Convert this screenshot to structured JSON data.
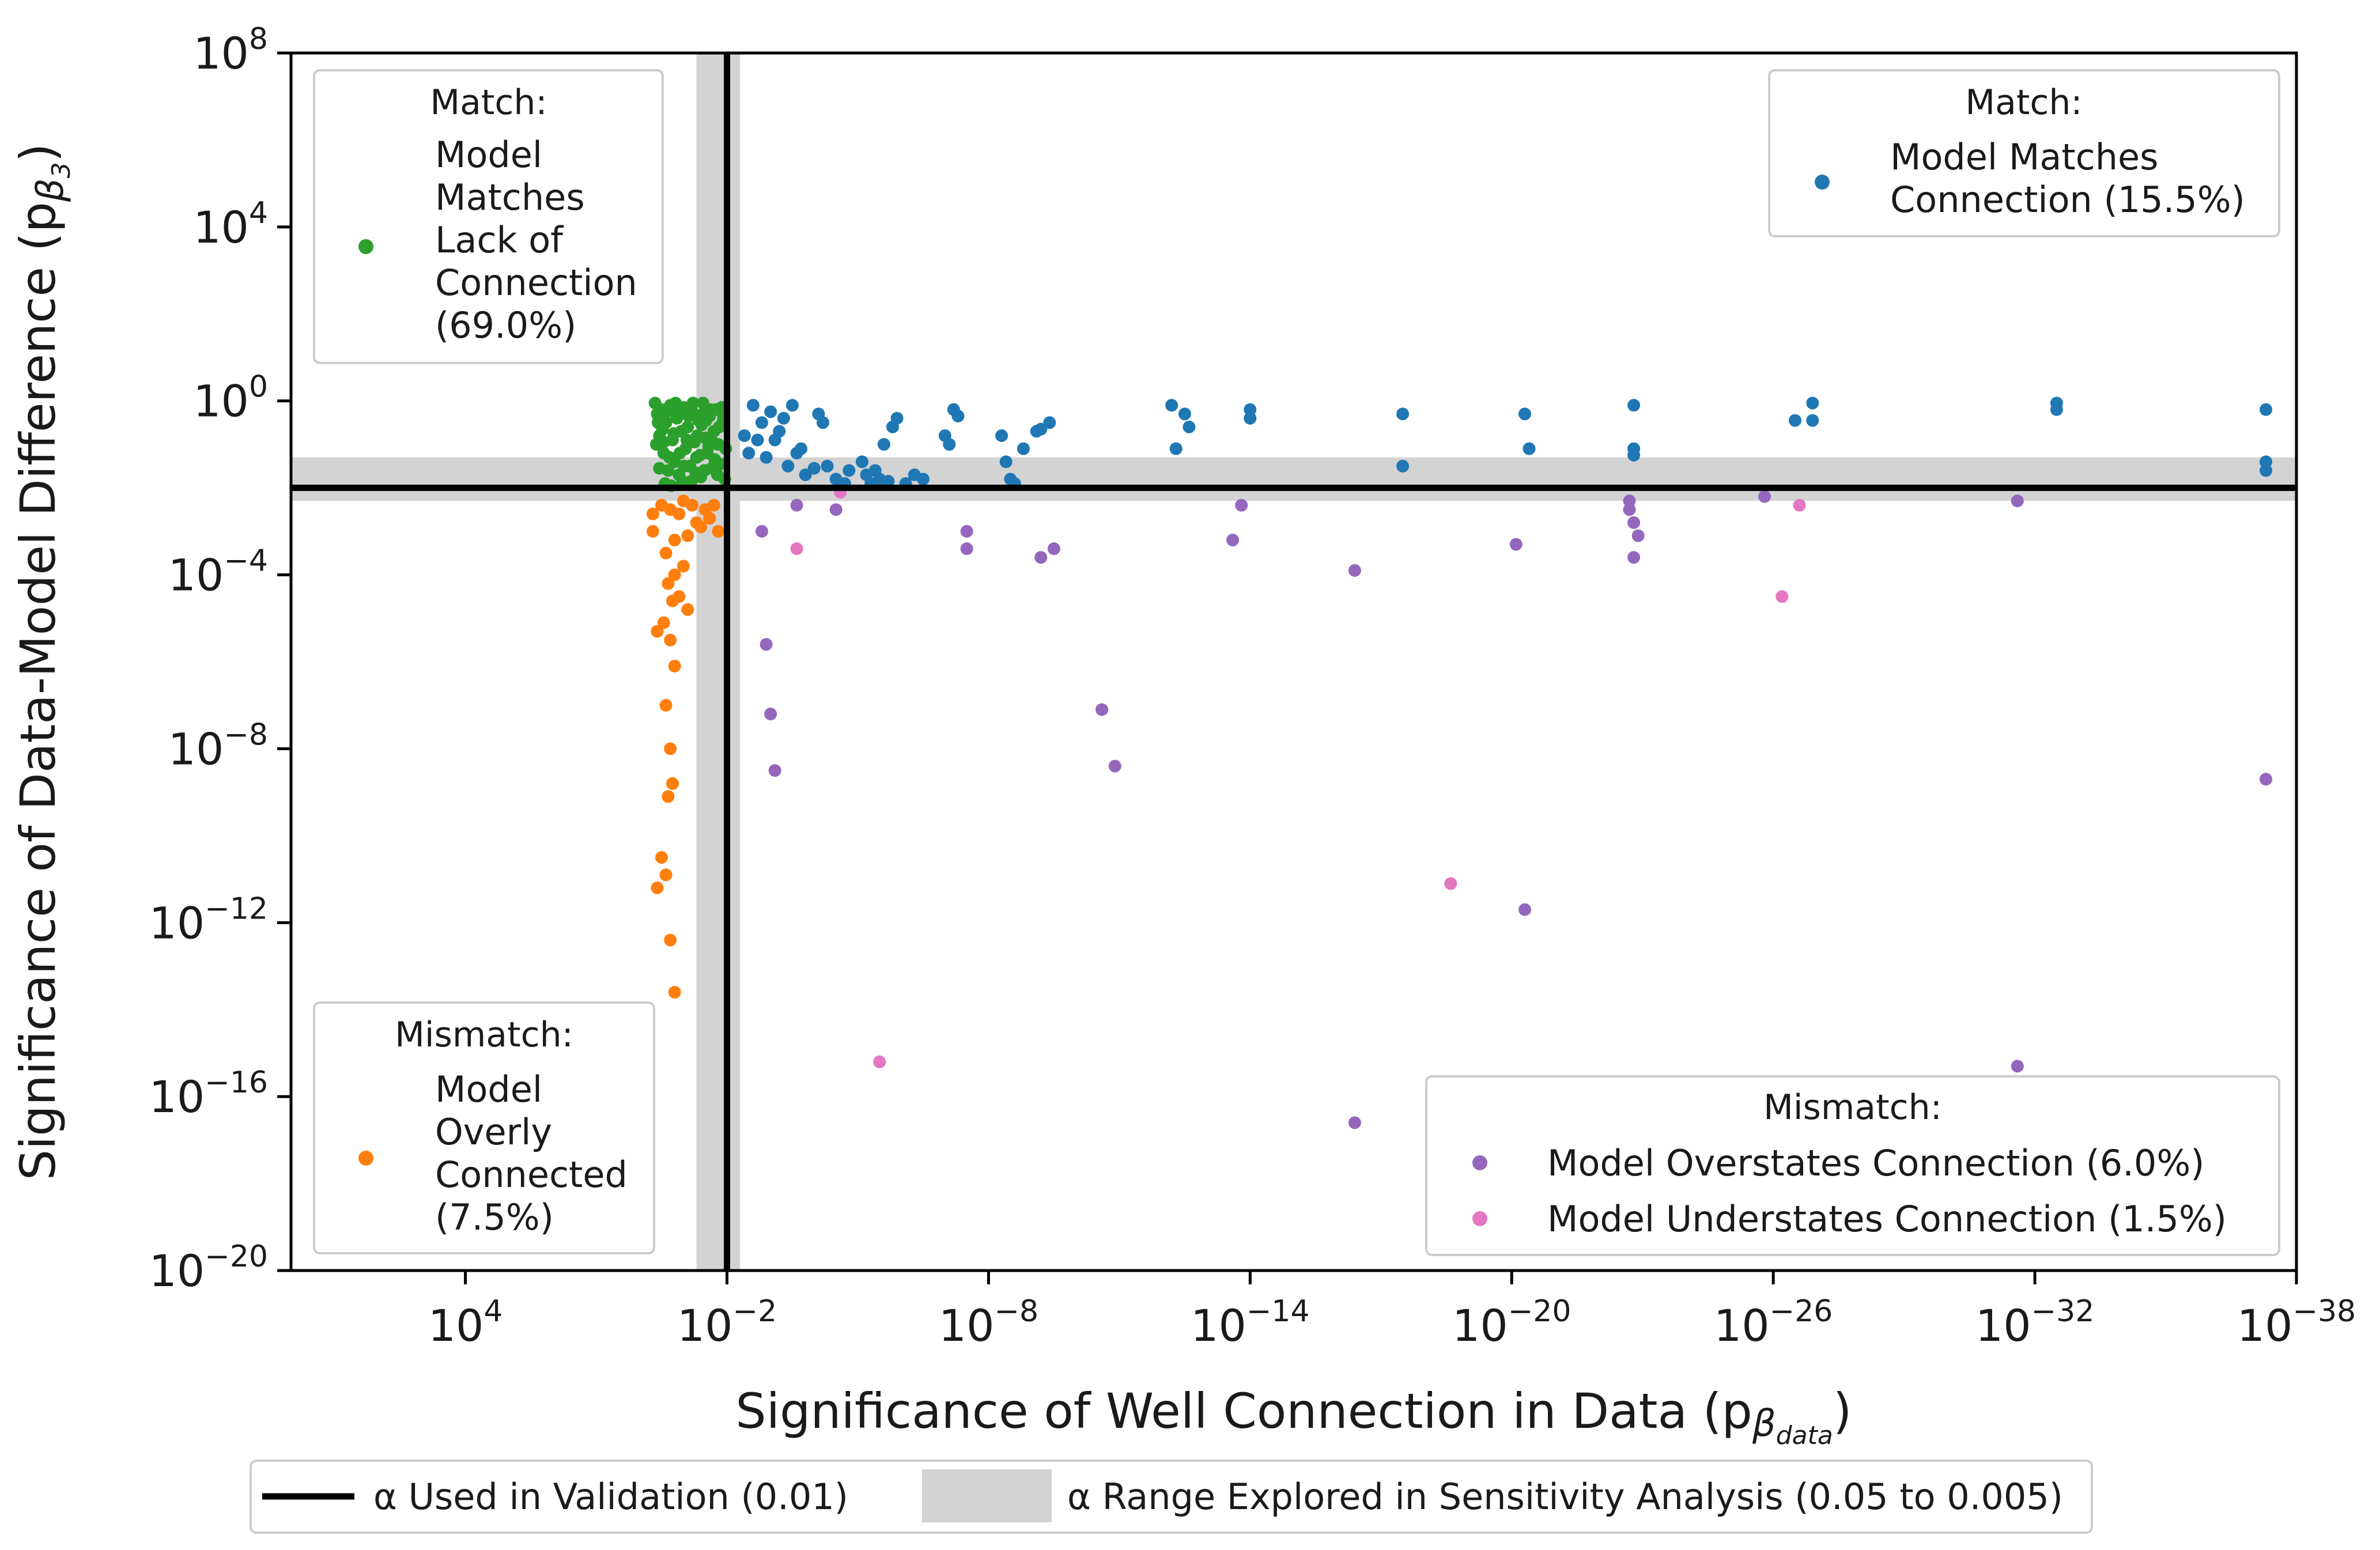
{
  "chart_data": {
    "type": "scatter",
    "xlabel": "Significance of Well Connection in Data (p",
    "xlabel_sub": "β",
    "xlabel_subsub": "data",
    "xlabel_close": ")",
    "ylabel": "Significance of Data-Model Difference (p",
    "ylabel_sub": "β",
    "ylabel_subsub": "3",
    "ylabel_close": ")",
    "x_log_range": [
      8,
      -38
    ],
    "y_log_range": [
      -20,
      8
    ],
    "x_ticks": [
      {
        "base": "10",
        "exp": "4",
        "value": 4
      },
      {
        "base": "10",
        "exp": "−2",
        "value": -2
      },
      {
        "base": "10",
        "exp": "−8",
        "value": -8
      },
      {
        "base": "10",
        "exp": "−14",
        "value": -14
      },
      {
        "base": "10",
        "exp": "−20",
        "value": -20
      },
      {
        "base": "10",
        "exp": "−26",
        "value": -26
      },
      {
        "base": "10",
        "exp": "−32",
        "value": -32
      },
      {
        "base": "10",
        "exp": "−38",
        "value": -38
      }
    ],
    "y_ticks": [
      {
        "base": "10",
        "exp": "8",
        "value": 8
      },
      {
        "base": "10",
        "exp": "4",
        "value": 4
      },
      {
        "base": "10",
        "exp": "0",
        "value": 0
      },
      {
        "base": "10",
        "exp": "−4",
        "value": -4
      },
      {
        "base": "10",
        "exp": "−8",
        "value": -8
      },
      {
        "base": "10",
        "exp": "−12",
        "value": -12
      },
      {
        "base": "10",
        "exp": "−16",
        "value": -16
      },
      {
        "base": "10",
        "exp": "−20",
        "value": -20
      }
    ],
    "alpha_line": {
      "value": -2,
      "label": "α Used in Validation (0.01)"
    },
    "alpha_band": {
      "from": -1.3,
      "to": -2.3,
      "label": "α Range Explored in Sensitivity Analysis (0.05 to 0.005)"
    },
    "legends": {
      "top_left": {
        "title": "Match:",
        "label_lines": [
          "Model",
          "Matches",
          "Lack of",
          "Connection",
          "(69.0%)"
        ],
        "color": "#2ca02c"
      },
      "top_right": {
        "title": "Match:",
        "label_lines": [
          "Model Matches",
          "Connection (15.5%)"
        ],
        "color": "#1f77b4"
      },
      "bottom_left": {
        "title": "Mismatch:",
        "label_lines": [
          "Model",
          "Overly",
          "Connected",
          "(7.5%)"
        ],
        "color": "#ff7f0e"
      },
      "bottom_right": {
        "title": "Mismatch:",
        "entries": [
          {
            "label": "Model Overstates Connection (6.0%)",
            "color": "#9467bd"
          },
          {
            "label": "Model Understates Connection (1.5%)",
            "color": "#e377c2"
          }
        ]
      }
    },
    "series": [
      {
        "name": "Model Matches Lack of Connection (69.0%)",
        "color": "#2ca02c",
        "points": [
          [
            -0.35,
            -0.05
          ],
          [
            -0.4,
            -0.3
          ],
          [
            -0.45,
            -0.8
          ],
          [
            -0.5,
            -0.2
          ],
          [
            -0.55,
            -1.2
          ],
          [
            -0.6,
            -0.5
          ],
          [
            -0.65,
            -1.6
          ],
          [
            -0.7,
            -0.1
          ],
          [
            -0.75,
            -0.9
          ],
          [
            -0.8,
            -1.4
          ],
          [
            -0.85,
            -0.4
          ],
          [
            -0.9,
            -1.7
          ],
          [
            -0.95,
            -0.7
          ],
          [
            -1.0,
            -0.15
          ],
          [
            -1.05,
            -1.1
          ],
          [
            -1.1,
            -0.6
          ],
          [
            -1.15,
            -1.5
          ],
          [
            -1.2,
            -0.25
          ],
          [
            -1.25,
            -0.95
          ],
          [
            -1.3,
            -1.3
          ],
          [
            -1.35,
            -0.45
          ],
          [
            -1.4,
            -1.75
          ],
          [
            -1.45,
            -0.05
          ],
          [
            -1.5,
            -0.85
          ],
          [
            -1.55,
            -1.2
          ],
          [
            -1.6,
            -0.35
          ],
          [
            -1.65,
            -1.55
          ],
          [
            -1.7,
            -0.7
          ],
          [
            -1.75,
            -0.2
          ],
          [
            -1.8,
            -1.0
          ],
          [
            -1.85,
            -1.45
          ],
          [
            -1.9,
            -0.5
          ],
          [
            -1.95,
            -1.8
          ],
          [
            -0.38,
            -1.0
          ],
          [
            -0.52,
            -0.65
          ],
          [
            -0.68,
            -1.3
          ],
          [
            -0.82,
            -0.05
          ],
          [
            -0.98,
            -1.85
          ],
          [
            -1.12,
            -0.35
          ],
          [
            -1.28,
            -1.65
          ],
          [
            -1.42,
            -0.55
          ],
          [
            -1.58,
            -1.05
          ],
          [
            -1.72,
            -1.35
          ],
          [
            -1.88,
            -0.15
          ],
          [
            -0.45,
            -1.55
          ],
          [
            -0.62,
            -0.25
          ],
          [
            -0.78,
            -0.75
          ],
          [
            -0.92,
            -1.2
          ],
          [
            -1.08,
            -0.9
          ],
          [
            -1.22,
            -0.05
          ],
          [
            -1.38,
            -1.25
          ],
          [
            -1.52,
            -0.45
          ],
          [
            -1.68,
            -0.95
          ],
          [
            -1.82,
            -0.6
          ],
          [
            -1.97,
            -1.1
          ],
          [
            -0.42,
            -0.5
          ],
          [
            -0.58,
            -1.9
          ],
          [
            -0.88,
            -0.3
          ],
          [
            -1.18,
            -1.85
          ],
          [
            -1.48,
            -1.6
          ],
          [
            -1.62,
            -0.2
          ],
          [
            -1.78,
            -1.7
          ],
          [
            -0.72,
            -1.95
          ],
          [
            -1.02,
            -1.5
          ],
          [
            -1.32,
            -0.8
          ],
          [
            -1.92,
            -0.4
          ],
          [
            -0.55,
            -0.95
          ],
          [
            -1.45,
            -0.3
          ]
        ]
      },
      {
        "name": "Model Matches Connection (15.5%)",
        "color": "#1f77b4",
        "points": [
          [
            -2.6,
            -0.1
          ],
          [
            -2.8,
            -0.5
          ],
          [
            -2.9,
            -1.3
          ],
          [
            -3.0,
            -0.25
          ],
          [
            -3.1,
            -0.9
          ],
          [
            -3.3,
            -0.4
          ],
          [
            -3.4,
            -1.5
          ],
          [
            -3.5,
            -0.1
          ],
          [
            -3.6,
            -1.2
          ],
          [
            -4.2,
            -0.5
          ],
          [
            -4.3,
            -1.5
          ],
          [
            -4.5,
            -1.8
          ],
          [
            -4.7,
            -1.9
          ],
          [
            -4.8,
            -1.6
          ],
          [
            -5.2,
            -1.7
          ],
          [
            -5.3,
            -1.9
          ],
          [
            -5.4,
            -1.6
          ],
          [
            -5.5,
            -1.8
          ],
          [
            -5.6,
            -1.0
          ],
          [
            -5.7,
            -1.85
          ],
          [
            -5.8,
            -0.6
          ],
          [
            -5.9,
            -0.4
          ],
          [
            -6.3,
            -1.7
          ],
          [
            -6.1,
            -1.9
          ],
          [
            -7.0,
            -0.8
          ],
          [
            -7.1,
            -1.0
          ],
          [
            -7.2,
            -0.2
          ],
          [
            -8.3,
            -0.8
          ],
          [
            -8.4,
            -1.4
          ],
          [
            -8.5,
            -1.8
          ],
          [
            -8.6,
            -1.9
          ],
          [
            -9.1,
            -0.7
          ],
          [
            -9.2,
            -0.65
          ],
          [
            -12.2,
            -0.1
          ],
          [
            -12.3,
            -1.1
          ],
          [
            -12.5,
            -0.3
          ],
          [
            -12.6,
            -0.6
          ],
          [
            -14.0,
            -0.2
          ],
          [
            -14.0,
            -0.4
          ],
          [
            -17.5,
            -0.3
          ],
          [
            -17.5,
            -1.5
          ],
          [
            -20.3,
            -0.3
          ],
          [
            -20.4,
            -1.1
          ],
          [
            -22.8,
            -0.1
          ],
          [
            -22.8,
            -1.1
          ],
          [
            -22.8,
            -1.25
          ],
          [
            -26.5,
            -0.45
          ],
          [
            -26.9,
            -0.45
          ],
          [
            -26.9,
            -0.05
          ],
          [
            -32.5,
            -0.05
          ],
          [
            -32.5,
            -0.2
          ],
          [
            -37.3,
            -0.2
          ],
          [
            -37.3,
            -1.4
          ],
          [
            -37.3,
            -1.6
          ],
          [
            -2.4,
            -0.8
          ],
          [
            -3.8,
            -1.7
          ],
          [
            -4.0,
            -1.55
          ],
          [
            -6.5,
            -1.8
          ],
          [
            -7.3,
            -0.35
          ],
          [
            -2.5,
            -1.2
          ],
          [
            -3.2,
            -0.7
          ],
          [
            -4.1,
            -0.3
          ],
          [
            -5.1,
            -1.4
          ],
          [
            -8.8,
            -1.1
          ],
          [
            -9.4,
            -0.5
          ],
          [
            -3.7,
            -1.1
          ],
          [
            -2.7,
            -0.9
          ]
        ]
      },
      {
        "name": "Model Overly Connected (7.5%)",
        "color": "#ff7f0e",
        "points": [
          [
            -1.7,
            -2.4
          ],
          [
            -1.5,
            -2.5
          ],
          [
            -1.2,
            -2.4
          ],
          [
            -1.0,
            -2.3
          ],
          [
            -0.9,
            -2.6
          ],
          [
            -1.3,
            -2.8
          ],
          [
            -1.1,
            -3.1
          ],
          [
            -1.4,
            -2.9
          ],
          [
            -1.6,
            -2.7
          ],
          [
            -1.8,
            -3.0
          ],
          [
            -0.8,
            -3.2
          ],
          [
            -0.7,
            -2.5
          ],
          [
            -0.5,
            -2.4
          ],
          [
            -0.3,
            -2.6
          ],
          [
            -0.6,
            -3.5
          ],
          [
            -0.8,
            -4.0
          ],
          [
            -0.65,
            -4.2
          ],
          [
            -0.75,
            -4.6
          ],
          [
            -0.55,
            -5.1
          ],
          [
            -0.7,
            -5.5
          ],
          [
            -0.4,
            -5.3
          ],
          [
            -0.8,
            -6.1
          ],
          [
            -0.6,
            -7.0
          ],
          [
            -0.7,
            -8.0
          ],
          [
            -0.75,
            -8.8
          ],
          [
            -0.65,
            -9.1
          ],
          [
            -0.5,
            -10.5
          ],
          [
            -0.6,
            -10.9
          ],
          [
            -0.4,
            -11.2
          ],
          [
            -0.7,
            -12.4
          ],
          [
            -0.8,
            -13.6
          ],
          [
            -1.0,
            -3.8
          ],
          [
            -0.9,
            -4.5
          ],
          [
            -0.3,
            -3.0
          ],
          [
            -1.1,
            -4.8
          ]
        ]
      },
      {
        "name": "Model Overstates Connection (6.0%)",
        "color": "#9467bd",
        "points": [
          [
            -2.8,
            -3.0
          ],
          [
            -3.0,
            -7.2
          ],
          [
            -3.1,
            -8.5
          ],
          [
            -2.9,
            -5.6
          ],
          [
            -3.6,
            -2.4
          ],
          [
            -4.5,
            -2.5
          ],
          [
            -7.5,
            -3.0
          ],
          [
            -7.5,
            -3.4
          ],
          [
            -9.2,
            -3.6
          ],
          [
            -9.5,
            -3.4
          ],
          [
            -10.6,
            -7.1
          ],
          [
            -10.9,
            -8.4
          ],
          [
            -13.6,
            -3.2
          ],
          [
            -13.8,
            -2.4
          ],
          [
            -16.4,
            -16.6
          ],
          [
            -16.4,
            -3.9
          ],
          [
            -20.1,
            -3.3
          ],
          [
            -20.3,
            -11.7
          ],
          [
            -22.7,
            -2.3
          ],
          [
            -22.7,
            -2.5
          ],
          [
            -22.8,
            -2.8
          ],
          [
            -22.8,
            -3.6
          ],
          [
            -22.9,
            -3.1
          ],
          [
            -25.8,
            -2.2
          ],
          [
            -31.6,
            -2.3
          ],
          [
            -31.6,
            -15.3
          ],
          [
            -37.3,
            -8.7
          ]
        ]
      },
      {
        "name": "Model Understates Connection (1.5%)",
        "color": "#e377c2",
        "points": [
          [
            -3.6,
            -3.4
          ],
          [
            -4.6,
            -2.1
          ],
          [
            -5.5,
            -15.2
          ],
          [
            -18.6,
            -11.1
          ],
          [
            -26.2,
            -4.5
          ],
          [
            -26.6,
            -2.4
          ]
        ]
      }
    ]
  },
  "bottom_legend": {
    "line_label": "α Used in Validation (0.01)",
    "band_label": "α Range Explored in Sensitivity Analysis (0.05 to 0.005)"
  }
}
